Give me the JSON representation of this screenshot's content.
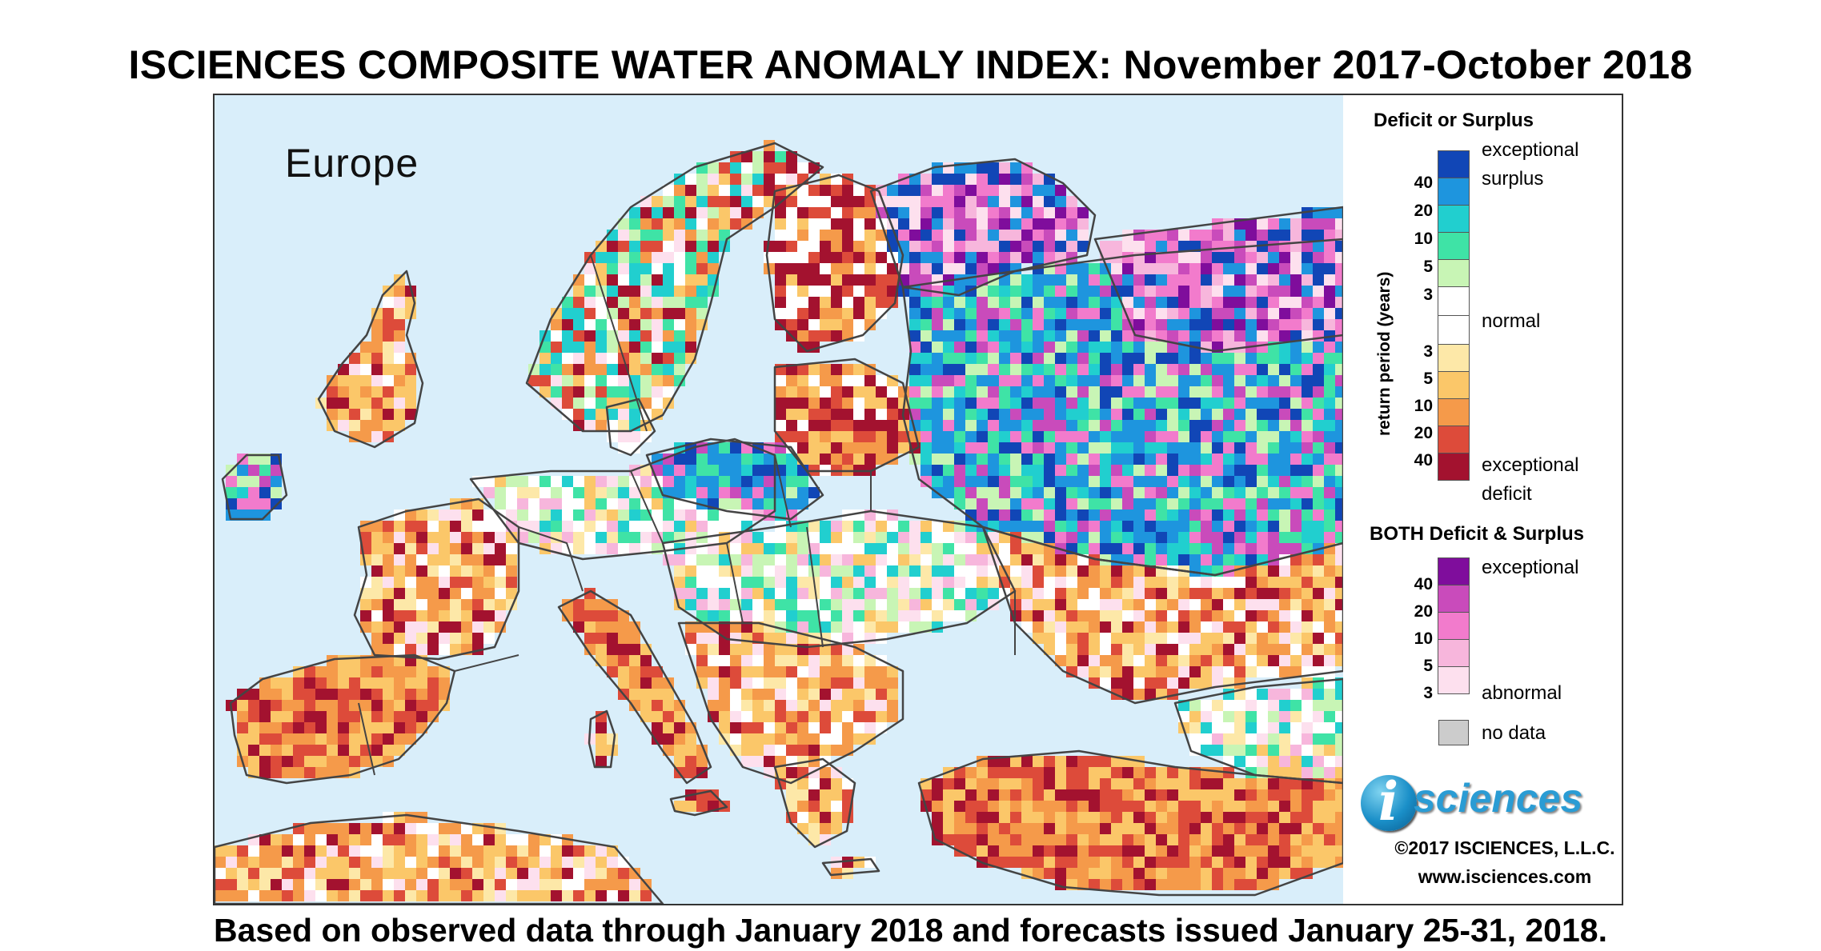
{
  "title": "ISCIENCES COMPOSITE WATER ANOMALY INDEX: November 2017-October 2018",
  "subtitle": "Based on observed data through January 2018 and forecasts issued January 25-31, 2018.",
  "map": {
    "region_label": "Europe",
    "colors": {
      "water": "#d9eefa",
      "border": "#444444",
      "normal": "#ffffff",
      "deficit_3": "#fde8a8",
      "deficit_5": "#fbc769",
      "deficit_10": "#f59a4a",
      "deficit_20": "#dd4b3a",
      "deficit_40": "#a3122f",
      "surplus_3": "#c8f5b5",
      "surplus_5": "#3fe3a6",
      "surplus_10": "#21cfcf",
      "surplus_20": "#1e95de",
      "surplus_40": "#1146b6",
      "both_3": "#fde0ee",
      "both_5": "#f7b6dc",
      "both_10": "#f27bcc",
      "both_20": "#c94bbb",
      "both_40": "#7f0d9c"
    }
  },
  "legend": {
    "deficit_surplus": {
      "heading": "Deficit or Surplus",
      "axis_label": "return period (years)",
      "top_label_1": "exceptional",
      "top_label_2": "surplus",
      "middle_label": "normal",
      "bottom_label_1": "exceptional",
      "bottom_label_2": "deficit",
      "surplus_ticks": [
        "40",
        "20",
        "10",
        "5",
        "3"
      ],
      "deficit_ticks": [
        "3",
        "5",
        "10",
        "20",
        "40"
      ],
      "colors": [
        "#1146b6",
        "#1e95de",
        "#21cfcf",
        "#3fe3a6",
        "#c8f5b5",
        "#ffffff",
        "#ffffff",
        "#fde8a8",
        "#fbc769",
        "#f59a4a",
        "#dd4b3a",
        "#a3122f"
      ]
    },
    "both": {
      "heading": "BOTH Deficit & Surplus",
      "top_label": "exceptional",
      "bottom_label": "abnormal",
      "ticks": [
        "40",
        "20",
        "10",
        "5",
        "3"
      ],
      "colors": [
        "#7f0d9c",
        "#c94bbb",
        "#f27bcc",
        "#f7b6dc",
        "#fde0ee"
      ]
    },
    "no_data": {
      "label": "no data",
      "color": "#cccccc"
    }
  },
  "branding": {
    "logo_i": "i",
    "logo_text": "sciences",
    "copyright": "©2017 ISCIENCES, L.L.C.",
    "website": "www.isciences.com"
  }
}
